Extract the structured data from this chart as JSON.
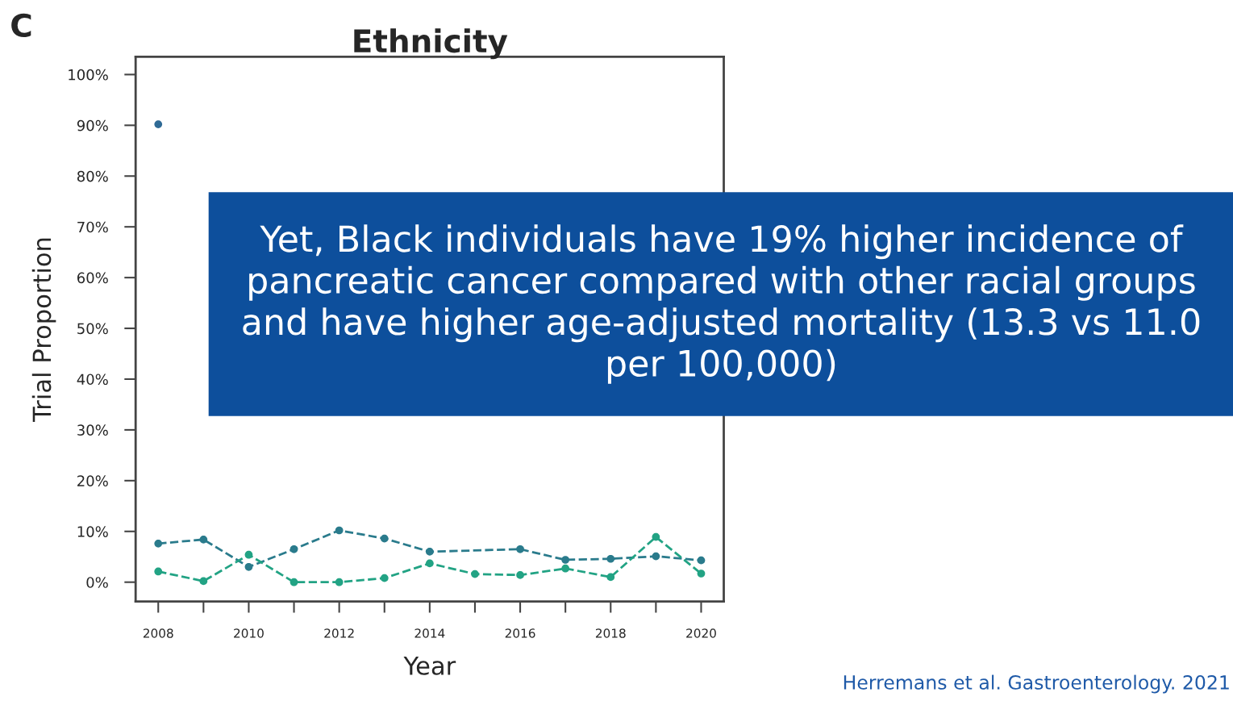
{
  "chart_data": {
    "type": "line",
    "title": "Ethnicity",
    "xlabel": "Year",
    "ylabel": "Trial Proportion",
    "x": [
      2008,
      2009,
      2010,
      2011,
      2012,
      2013,
      2014,
      2015,
      2016,
      2017,
      2018,
      2019,
      2020
    ],
    "series": [
      {
        "color": "#2f6a95",
        "values": [
          90.2,
          null,
          null,
          null,
          null,
          null,
          null,
          null,
          null,
          null,
          null,
          null,
          null
        ]
      },
      {
        "color": "#2a7b8c",
        "values": [
          7.6,
          8.4,
          3.0,
          6.5,
          10.2,
          8.6,
          6.0,
          null,
          6.5,
          4.4,
          4.6,
          5.1,
          4.3
        ]
      },
      {
        "color": "#22a384",
        "values": [
          2.1,
          0.2,
          5.4,
          0,
          0,
          0.8,
          3.7,
          1.6,
          1.4,
          2.7,
          1.0,
          8.9,
          1.7
        ]
      }
    ],
    "marker": "circle",
    "line_style": "dashed",
    "grid": false,
    "legend": false,
    "xlim": [
      2007.5,
      2020.5
    ],
    "ylim": [
      -3.8,
      103.5
    ],
    "xticks": [
      2008,
      {
        "value": 2009,
        "label": null
      },
      2010,
      {
        "value": 2011,
        "label": null
      },
      2012,
      {
        "value": 2013,
        "label": null
      },
      2014,
      {
        "value": 2015,
        "label": null
      },
      2016,
      {
        "value": 2017,
        "label": null
      },
      2018,
      {
        "value": 2019,
        "label": null
      },
      2020
    ],
    "yticks": [
      {
        "value": 0,
        "label": "0%"
      },
      {
        "value": 10,
        "label": "10%"
      },
      {
        "value": 20,
        "label": "20%"
      },
      {
        "value": 30,
        "label": "30%"
      },
      {
        "value": 40,
        "label": "40%"
      },
      {
        "value": 50,
        "label": "50%"
      },
      {
        "value": 60,
        "label": "60%"
      },
      {
        "value": 70,
        "label": "70%"
      },
      {
        "value": 80,
        "label": "80%"
      },
      {
        "value": 90,
        "label": "90%"
      },
      {
        "value": 100,
        "label": "100%"
      }
    ],
    "annotations": [
      "C",
      "Yet, Black individuals have 19% higher incidence of pancreatic cancer compared with other racial groups and have higher age-adjusted mortality (13.3 vs 11.0 per 100,000)",
      "Herremans et al. Gastroenterology. 2021"
    ]
  }
}
